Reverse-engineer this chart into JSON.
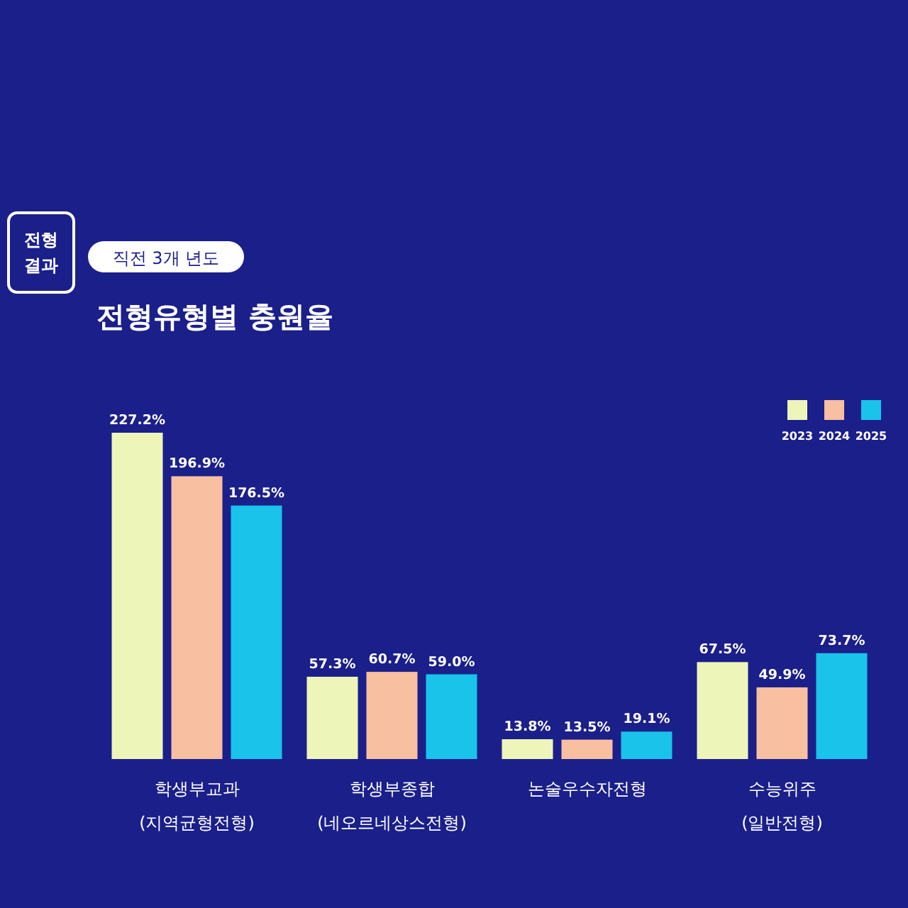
{
  "chart_data": {
    "type": "bar",
    "title": "전형유형별 충원율",
    "subtitle": "직전 3개 년도",
    "annotations": [
      "전형결과"
    ],
    "categories": [
      "학생부교과 (지역균형전형)",
      "학생부종합 (네오르네상스전형)",
      "논술우수자전형",
      "수능위주 (일반전형)"
    ],
    "series": [
      {
        "name": "2023",
        "color": "#eef5b8",
        "values": [
          227.2,
          57.3,
          13.8,
          67.5
        ],
        "value_labels": [
          "227.2%",
          "57.3%",
          "13.8%",
          "67.5%"
        ]
      },
      {
        "name": "2024",
        "color": "#f8bfa0",
        "values": [
          196.9,
          60.7,
          13.5,
          49.9
        ],
        "value_labels": [
          "196.9%",
          "60.7%",
          "13.5%",
          "49.9%"
        ]
      },
      {
        "name": "2025",
        "color": "#19c3ea",
        "values": [
          176.5,
          59.0,
          19.1,
          73.7
        ],
        "value_labels": [
          "176.5%",
          "59.0%",
          "19.1%",
          "73.7%"
        ]
      }
    ],
    "legend": "top right",
    "grid": false
  }
}
